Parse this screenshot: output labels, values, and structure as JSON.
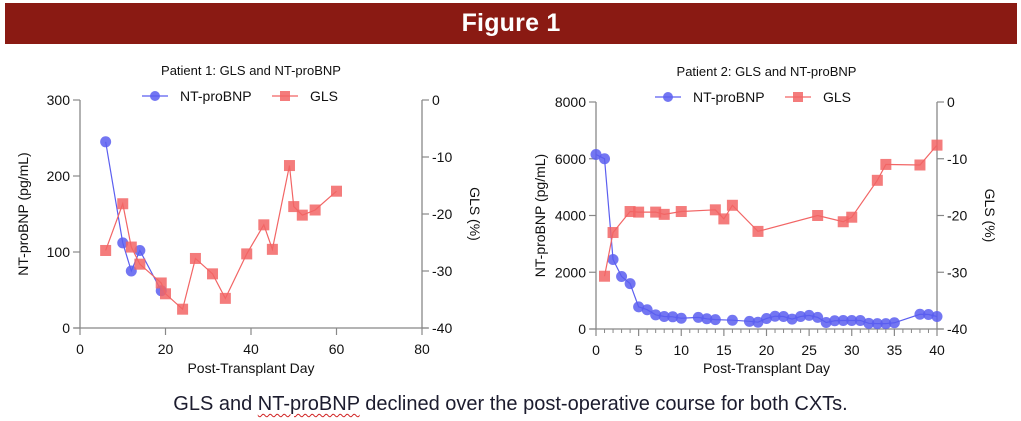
{
  "banner": {
    "title": "Figure 1"
  },
  "caption": {
    "before": "GLS and ",
    "flagged": "NT-proBNP",
    "after": " declined over the post-operative course for both CXTs."
  },
  "colors": {
    "banner": "#8a1a13",
    "ntprobnp": "#5b5ef0",
    "gls": "#f26565",
    "axis": "#888888"
  },
  "chart_data": [
    {
      "type": "line",
      "title": "Patient 1: GLS and NT-proBNP",
      "xlabel": "Post-Transplant Day",
      "ylabel": "NT-proBNP (pg/mL)",
      "y2label": "GLS (%)",
      "xlim": [
        0,
        80
      ],
      "ylim": [
        0,
        300
      ],
      "y2lim": [
        -40,
        0
      ],
      "xticks": [
        0,
        20,
        40,
        60,
        80
      ],
      "yticks": [
        0,
        100,
        200,
        300
      ],
      "y2ticks": [
        0,
        -10,
        -20,
        -30,
        -40
      ],
      "legend": "top",
      "grid": false,
      "series": [
        {
          "name": "NT-proBNP",
          "axis": "left",
          "marker": "circle",
          "x": [
            6,
            10,
            12,
            14,
            19
          ],
          "values": [
            245,
            112,
            75,
            102,
            49
          ]
        },
        {
          "name": "GLS",
          "axis": "right",
          "marker": "square",
          "x": [
            6,
            10,
            12,
            14,
            19,
            20,
            24,
            27,
            31,
            34,
            39,
            43,
            45,
            49,
            50,
            52,
            55,
            60
          ],
          "values": [
            -26.4,
            -18.2,
            -25.8,
            -28.8,
            -32.1,
            -34.0,
            -36.7,
            -27.8,
            -30.5,
            -34.8,
            -27.0,
            -21.9,
            -26.2,
            -11.5,
            -18.7,
            -20.2,
            -19.3,
            -16.0
          ]
        }
      ]
    },
    {
      "type": "line",
      "title": "Patient 2: GLS and NT-proBNP",
      "xlabel": "Post-Transplant Day",
      "ylabel": "NT-proBNP (pg/mL)",
      "y2label": "GLS (%)",
      "xlim": [
        0,
        40
      ],
      "ylim": [
        0,
        8000
      ],
      "y2lim": [
        -40,
        0
      ],
      "xticks": [
        0,
        5,
        10,
        15,
        20,
        25,
        30,
        35,
        40
      ],
      "xminor_step": 1,
      "yticks": [
        0,
        2000,
        4000,
        6000,
        8000
      ],
      "y2ticks": [
        0,
        -10,
        -20,
        -30,
        -40
      ],
      "legend": "top",
      "grid": false,
      "series": [
        {
          "name": "NT-proBNP",
          "axis": "left",
          "marker": "circle",
          "x": [
            0,
            1,
            2,
            3,
            4,
            5,
            6,
            7,
            8,
            9,
            10,
            12,
            13,
            14,
            16,
            18,
            19,
            20,
            21,
            22,
            23,
            24,
            25,
            26,
            27,
            28,
            29,
            30,
            31,
            32,
            33,
            34,
            35,
            38,
            39,
            40
          ],
          "values": [
            6150,
            6000,
            2450,
            1850,
            1600,
            780,
            680,
            500,
            440,
            430,
            380,
            410,
            360,
            330,
            310,
            270,
            240,
            370,
            450,
            440,
            350,
            440,
            480,
            410,
            230,
            290,
            300,
            300,
            300,
            200,
            190,
            190,
            220,
            520,
            510,
            440
          ]
        },
        {
          "name": "GLS",
          "axis": "right",
          "marker": "square",
          "x": [
            1,
            2,
            4,
            5,
            7,
            8,
            10,
            14,
            15,
            16,
            19,
            26,
            29,
            30,
            33,
            34,
            38,
            40
          ],
          "values": [
            -30.7,
            -23.0,
            -19.3,
            -19.4,
            -19.4,
            -19.8,
            -19.3,
            -19.0,
            -20.6,
            -18.2,
            -22.8,
            -20.0,
            -21.1,
            -20.3,
            -13.8,
            -11.0,
            -11.1,
            -7.6
          ]
        }
      ]
    }
  ]
}
